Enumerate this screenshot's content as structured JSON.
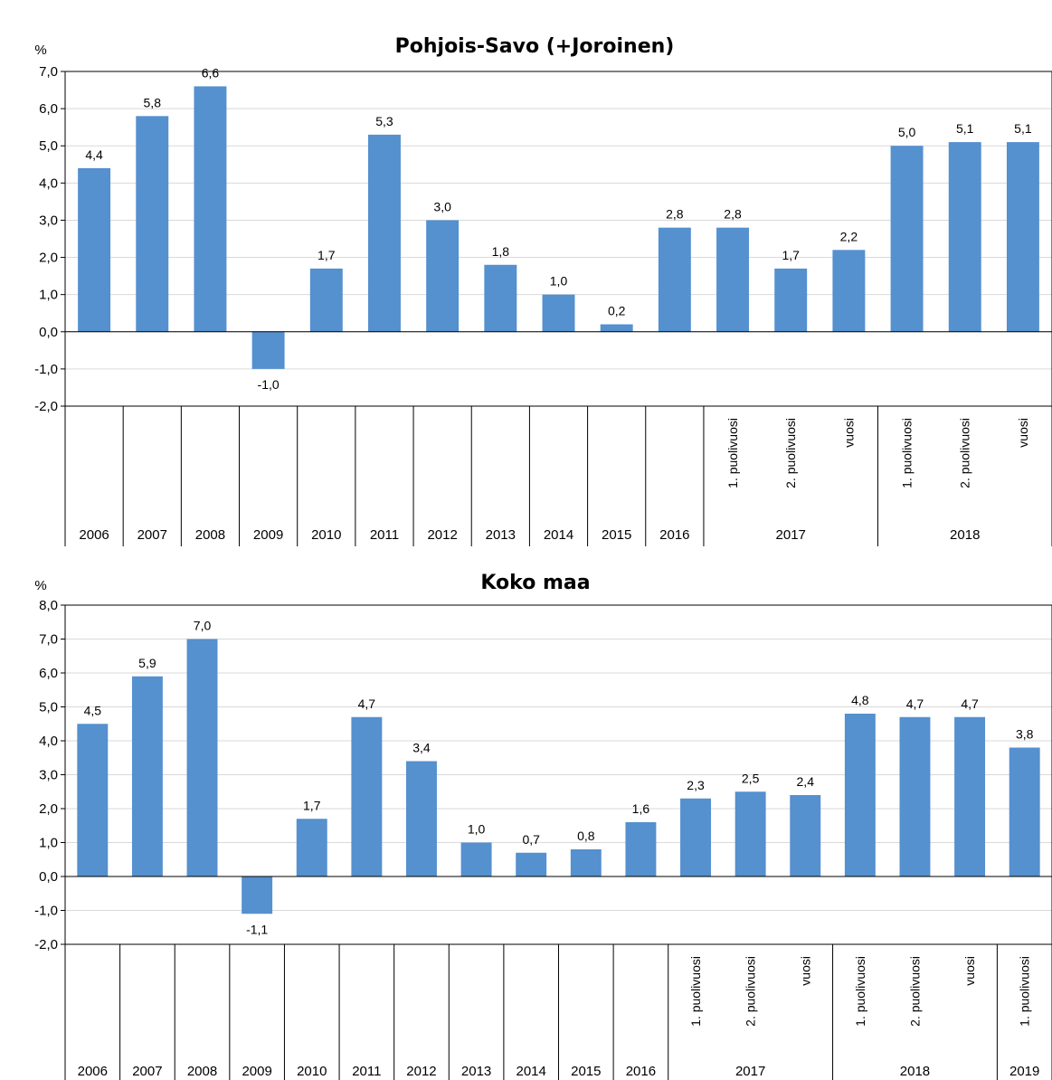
{
  "chart_data": [
    {
      "type": "bar",
      "title": "Pohjois-Savo (+Joroinen)",
      "ylabel": "%",
      "ylim": [
        -2,
        7
      ],
      "yticks": [
        "-2,0",
        "-1,0",
        "0,0",
        "1,0",
        "2,0",
        "3,0",
        "4,0",
        "5,0",
        "6,0",
        "7,0"
      ],
      "grid": true,
      "bar_color": "#5590cf",
      "categories": [
        "2006",
        "2007",
        "2008",
        "2009",
        "2010",
        "2011",
        "2012",
        "2013",
        "2014",
        "2015",
        "2016",
        "1. puolivuosi",
        "2. puolivuosi",
        "vuosi",
        "1. puolivuosi",
        "2. puolivuosi",
        "vuosi"
      ],
      "values": [
        4.4,
        5.8,
        6.6,
        -1.0,
        1.7,
        5.3,
        3.0,
        1.8,
        1.0,
        0.2,
        2.8,
        2.8,
        1.7,
        2.2,
        5.0,
        5.1,
        5.1
      ],
      "data_labels": [
        "4,4",
        "5,8",
        "6,6",
        "-1,0",
        "1,7",
        "5,3",
        "3,0",
        "1,8",
        "1,0",
        "0,2",
        "2,8",
        "2,8",
        "1,7",
        "2,2",
        "5,0",
        "5,1",
        "5,1"
      ],
      "groups": [
        {
          "label": "2017",
          "from": 11,
          "to": 13
        },
        {
          "label": "2018",
          "from": 14,
          "to": 16
        }
      ]
    },
    {
      "type": "bar",
      "title": "Koko maa",
      "ylabel": "%",
      "ylim": [
        -2,
        8
      ],
      "yticks": [
        "-2,0",
        "-1,0",
        "0,0",
        "1,0",
        "2,0",
        "3,0",
        "4,0",
        "5,0",
        "6,0",
        "7,0",
        "8,0"
      ],
      "grid": true,
      "bar_color": "#5590cf",
      "categories": [
        "2006",
        "2007",
        "2008",
        "2009",
        "2010",
        "2011",
        "2012",
        "2013",
        "2014",
        "2015",
        "2016",
        "1. puolivuosi",
        "2. puolivuosi",
        "vuosi",
        "1. puolivuosi",
        "2. puolivuosi",
        "vuosi",
        "1. puolivuosi"
      ],
      "values": [
        4.5,
        5.9,
        7.0,
        -1.1,
        1.7,
        4.7,
        3.4,
        1.0,
        0.7,
        0.8,
        1.6,
        2.3,
        2.5,
        2.4,
        4.8,
        4.7,
        4.7,
        3.8
      ],
      "data_labels": [
        "4,5",
        "5,9",
        "7,0",
        "-1,1",
        "1,7",
        "4,7",
        "3,4",
        "1,0",
        "0,7",
        "0,8",
        "1,6",
        "2,3",
        "2,5",
        "2,4",
        "4,8",
        "4,7",
        "4,7",
        "3,8"
      ],
      "groups": [
        {
          "label": "2017",
          "from": 11,
          "to": 13
        },
        {
          "label": "2018",
          "from": 14,
          "to": 16
        },
        {
          "label": "2019",
          "from": 17,
          "to": 17
        }
      ]
    }
  ]
}
